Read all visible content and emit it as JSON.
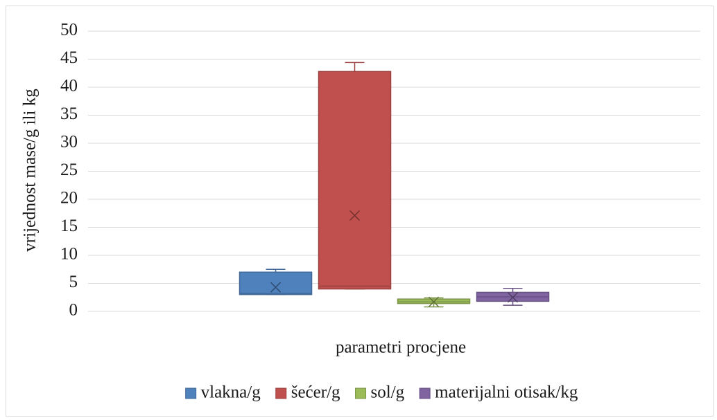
{
  "chart_data": {
    "type": "box",
    "x_label": "parametri procjene",
    "y_label": "vrijednost mase/g ili kg",
    "ylim": [
      0,
      50
    ],
    "yticks": [
      0,
      5,
      10,
      15,
      20,
      25,
      30,
      35,
      40,
      45,
      50
    ],
    "grid": true,
    "legend": "bottom",
    "series": [
      {
        "name": "vlakna/g",
        "color": "#4f81bd",
        "min": 3.0,
        "q1": 3.0,
        "median": 3.2,
        "q3": 7.0,
        "max": 7.5,
        "mean": 4.3
      },
      {
        "name": "šećer/g",
        "color": "#c0504d",
        "min": 4.0,
        "q1": 4.0,
        "median": 4.5,
        "q3": 42.8,
        "max": 44.4,
        "mean": 17.1
      },
      {
        "name": "sol/g",
        "color": "#9bbb59",
        "min": 0.8,
        "q1": 1.4,
        "median": 1.7,
        "q3": 2.2,
        "max": 2.4,
        "mean": 1.7
      },
      {
        "name": "materijalni otisak/kg",
        "color": "#8064a2",
        "min": 1.1,
        "q1": 1.8,
        "median": 2.6,
        "q3": 3.4,
        "max": 4.1,
        "mean": 2.5
      }
    ]
  }
}
